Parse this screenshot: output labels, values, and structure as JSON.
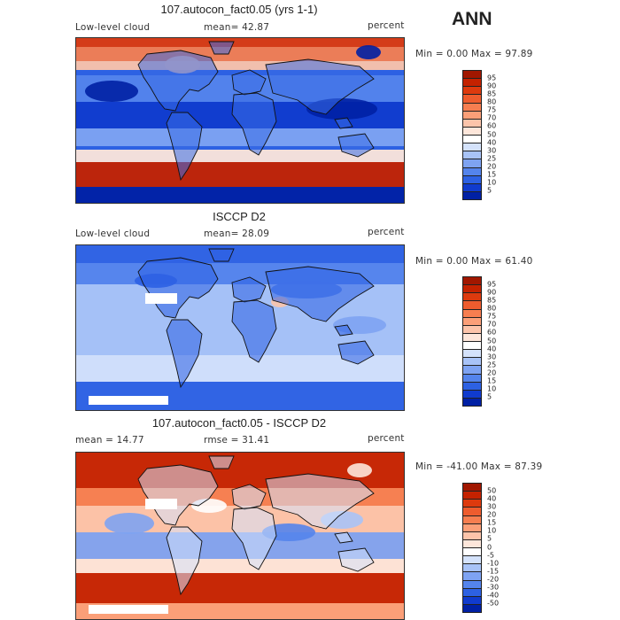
{
  "season": "ANN",
  "panels": [
    {
      "title": "107.autocon_fact0.05 (yrs 1-1)",
      "meta_left": "Low-level cloud",
      "meta_mid": "mean=  42.87",
      "units": "percent",
      "minmax": "Min =    0.00 Max =  97.89",
      "kind": "model",
      "colorbar": {
        "labels": [
          "95",
          "90",
          "85",
          "80",
          "75",
          "70",
          "60",
          "50",
          "40",
          "30",
          "25",
          "20",
          "15",
          "10",
          "5"
        ],
        "colors": [
          "#a11700",
          "#c42200",
          "#dd3a0e",
          "#ee5c2e",
          "#f67e50",
          "#fb9f78",
          "#fcc4aa",
          "#fde6da",
          "#ffffff",
          "#d4e2fb",
          "#a8c3f7",
          "#7ea3f2",
          "#5484ec",
          "#2d61e3",
          "#103bce",
          "#0020a4"
        ]
      }
    },
    {
      "title": "ISCCP D2",
      "meta_left": "Low-level cloud",
      "meta_mid": "mean=  28.09",
      "units": "percent",
      "minmax": "Min =    0.00 Max =  61.40",
      "kind": "obs",
      "colorbar": {
        "labels": [
          "95",
          "90",
          "85",
          "80",
          "75",
          "70",
          "60",
          "50",
          "40",
          "30",
          "25",
          "20",
          "15",
          "10",
          "5"
        ],
        "colors": [
          "#a11700",
          "#c42200",
          "#dd3a0e",
          "#ee5c2e",
          "#f67e50",
          "#fb9f78",
          "#fcc4aa",
          "#fde6da",
          "#ffffff",
          "#d4e2fb",
          "#a8c3f7",
          "#7ea3f2",
          "#5484ec",
          "#2d61e3",
          "#103bce",
          "#0020a4"
        ]
      }
    },
    {
      "title": "107.autocon_fact0.05 - ISCCP D2",
      "meta_left": "mean =   14.77",
      "meta_mid": "rmse =   31.41",
      "units": "percent",
      "minmax": "Min = -41.00 Max =  87.39",
      "kind": "diff",
      "colorbar": {
        "labels": [
          "50",
          "40",
          "30",
          "20",
          "15",
          "10",
          "5",
          "0",
          "-5",
          "-10",
          "-15",
          "-20",
          "-30",
          "-40",
          "-50"
        ],
        "colors": [
          "#a11700",
          "#c42200",
          "#dd3a0e",
          "#ee5c2e",
          "#f67e50",
          "#fb9f78",
          "#fcc4aa",
          "#fde6da",
          "#ffffff",
          "#d4e2fb",
          "#a8c3f7",
          "#7ea3f2",
          "#5484ec",
          "#2d61e3",
          "#103bce",
          "#0020a4"
        ]
      }
    }
  ]
}
